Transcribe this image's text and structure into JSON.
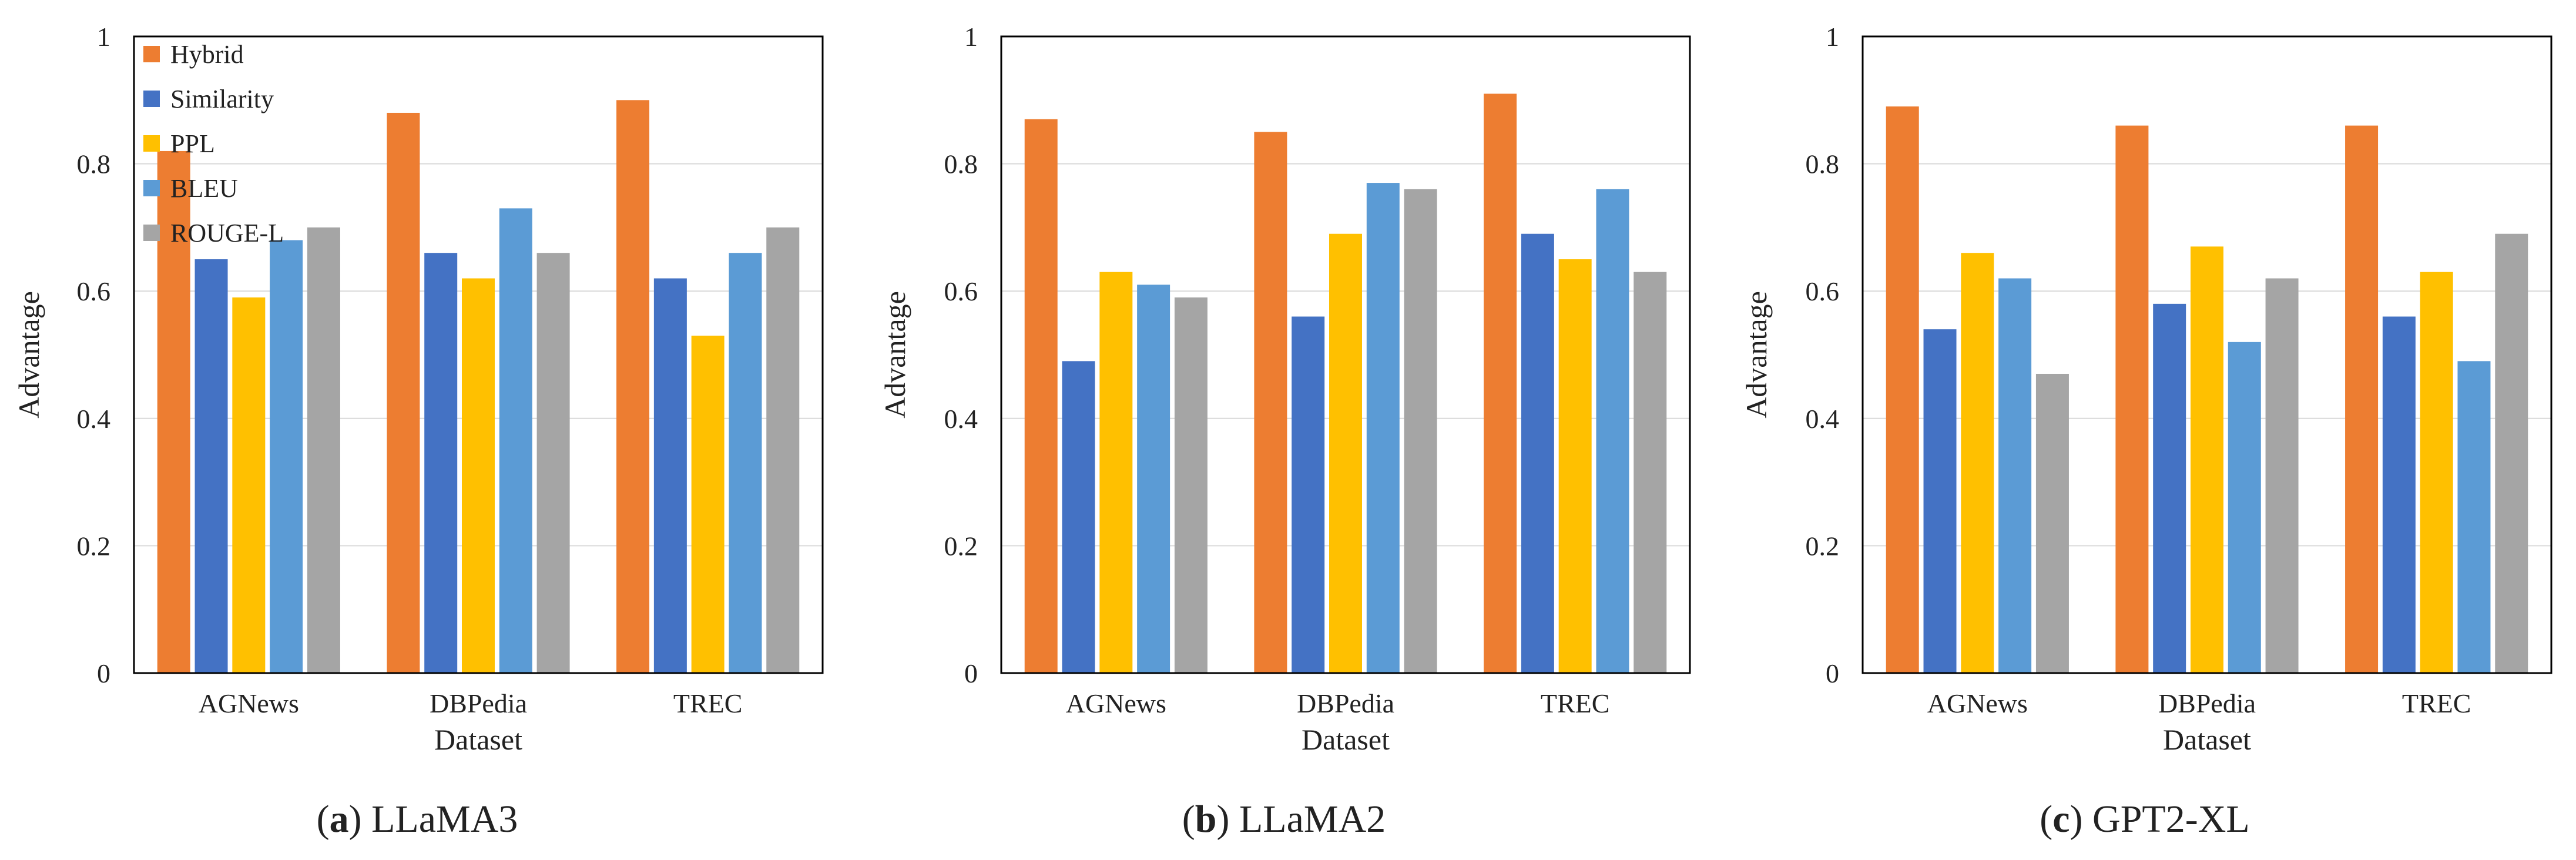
{
  "series_colors": {
    "Hybrid": "#ED7D31",
    "Similarity": "#4472C4",
    "PPL": "#FFC000",
    "BLEU": "#5B9BD5",
    "ROUGE-L": "#A5A5A5"
  },
  "chart_data": [
    {
      "type": "bar",
      "caption_letter": "a",
      "caption_text": "LLaMA3",
      "categories": [
        "AGNews",
        "DBPedia",
        "TREC"
      ],
      "xlabel": "Dataset",
      "ylabel": "Advantage",
      "ylim": [
        0,
        1
      ],
      "yticks": [
        "0",
        "0.2",
        "0.4",
        "0.6",
        "0.8",
        "1"
      ],
      "grid": true,
      "legend": "top-left",
      "series": [
        {
          "name": "Hybrid",
          "values": [
            0.82,
            0.88,
            0.9
          ]
        },
        {
          "name": "Similarity",
          "values": [
            0.65,
            0.66,
            0.62
          ]
        },
        {
          "name": "PPL",
          "values": [
            0.59,
            0.62,
            0.53
          ]
        },
        {
          "name": "BLEU",
          "values": [
            0.68,
            0.73,
            0.66
          ]
        },
        {
          "name": "ROUGE-L",
          "values": [
            0.7,
            0.66,
            0.7
          ]
        }
      ]
    },
    {
      "type": "bar",
      "caption_letter": "b",
      "caption_text": "LLaMA2",
      "categories": [
        "AGNews",
        "DBPedia",
        "TREC"
      ],
      "xlabel": "Dataset",
      "ylabel": "Advantage",
      "ylim": [
        0,
        1
      ],
      "yticks": [
        "0",
        "0.2",
        "0.4",
        "0.6",
        "0.8",
        "1"
      ],
      "grid": true,
      "series": [
        {
          "name": "Hybrid",
          "values": [
            0.87,
            0.85,
            0.91
          ]
        },
        {
          "name": "Similarity",
          "values": [
            0.49,
            0.56,
            0.69
          ]
        },
        {
          "name": "PPL",
          "values": [
            0.63,
            0.69,
            0.65
          ]
        },
        {
          "name": "BLEU",
          "values": [
            0.61,
            0.77,
            0.76
          ]
        },
        {
          "name": "ROUGE-L",
          "values": [
            0.59,
            0.76,
            0.63
          ]
        }
      ]
    },
    {
      "type": "bar",
      "caption_letter": "c",
      "caption_text": "GPT2-XL",
      "categories": [
        "AGNews",
        "DBPedia",
        "TREC"
      ],
      "xlabel": "Dataset",
      "ylabel": "Advantage",
      "ylim": [
        0,
        1
      ],
      "yticks": [
        "0",
        "0.2",
        "0.4",
        "0.6",
        "0.8",
        "1"
      ],
      "grid": true,
      "series": [
        {
          "name": "Hybrid",
          "values": [
            0.89,
            0.86,
            0.86
          ]
        },
        {
          "name": "Similarity",
          "values": [
            0.54,
            0.58,
            0.56
          ]
        },
        {
          "name": "PPL",
          "values": [
            0.66,
            0.67,
            0.63
          ]
        },
        {
          "name": "BLEU",
          "values": [
            0.62,
            0.52,
            0.49
          ]
        },
        {
          "name": "ROUGE-L",
          "values": [
            0.47,
            0.62,
            0.69
          ]
        }
      ]
    }
  ]
}
